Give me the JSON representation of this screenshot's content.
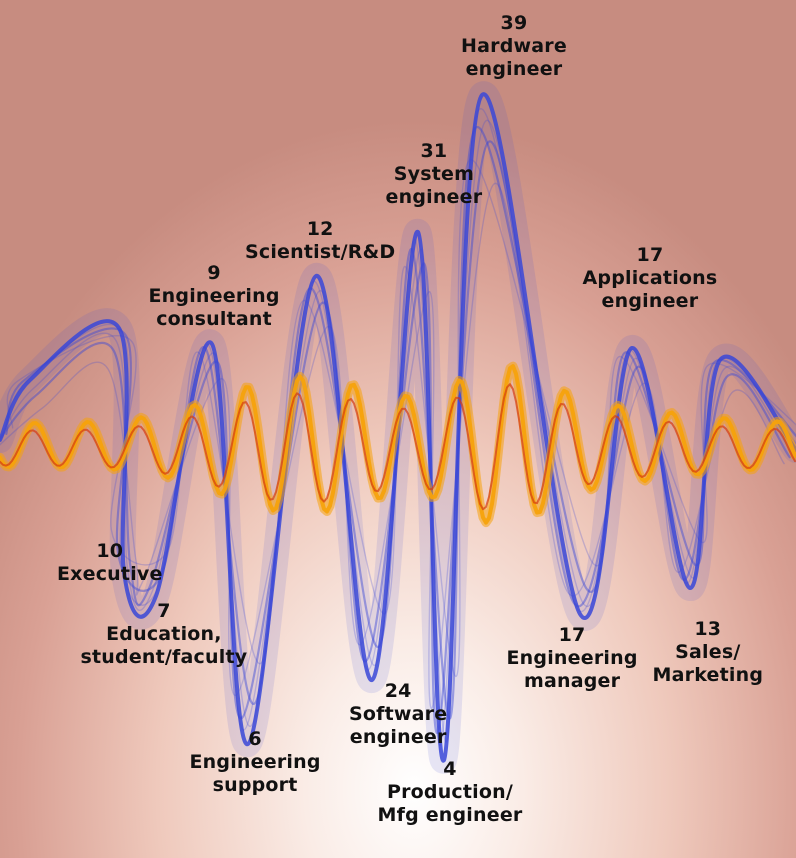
{
  "chart_data": {
    "type": "other",
    "colors": {
      "primary_wave": "#3a48d8",
      "secondary_wave": "#f5a20c",
      "accent_wave": "#d43a10"
    },
    "points": [
      {
        "value": 39,
        "label_lines": [
          "Hardware",
          "engineer"
        ]
      },
      {
        "value": 31,
        "label_lines": [
          "System",
          "engineer"
        ]
      },
      {
        "value": 12,
        "label_lines": [
          "Scientist/R&D"
        ]
      },
      {
        "value": 9,
        "label_lines": [
          "Engineering",
          "consultant"
        ]
      },
      {
        "value": 17,
        "label_lines": [
          "Applications",
          "engineer"
        ]
      },
      {
        "value": 10,
        "label_lines": [
          "Executive"
        ]
      },
      {
        "value": 7,
        "label_lines": [
          "Education,",
          "student/faculty"
        ]
      },
      {
        "value": 24,
        "label_lines": [
          "Software",
          "engineer"
        ]
      },
      {
        "value": 17,
        "label_lines": [
          "Engineering",
          "manager"
        ]
      },
      {
        "value": 13,
        "label_lines": [
          "Sales/",
          "Marketing"
        ]
      },
      {
        "value": 6,
        "label_lines": [
          "Engineering",
          "support"
        ]
      },
      {
        "value": 4,
        "label_lines": [
          "Production/",
          "Mfg engineer"
        ]
      }
    ]
  }
}
